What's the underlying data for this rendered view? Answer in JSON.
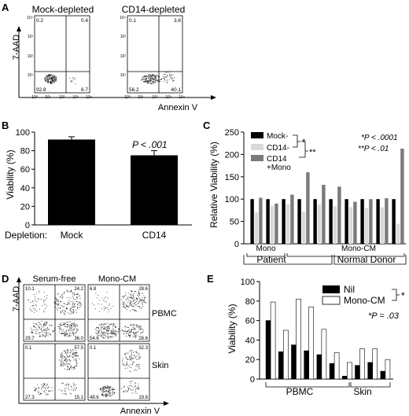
{
  "panel_letters": {
    "a": "A",
    "b": "B",
    "c": "C",
    "d": "D",
    "e": "E"
  },
  "colors": {
    "black": "#000000",
    "light_gray": "#d9d9d9",
    "dark_gray": "#7a7a7a",
    "white": "#ffffff"
  },
  "chart_data": [
    {
      "panel": "A",
      "type": "scatter",
      "ylabel": "7-AAD",
      "xlabel": "Annexin V",
      "tick_labels": [
        "10⁰",
        "10¹",
        "10²",
        "10³",
        "10⁴"
      ],
      "plots": [
        {
          "title": "Mock-depleted",
          "quadrants": {
            "upper_left": "0.2",
            "upper_right": "0.4",
            "lower_left": "92.8",
            "lower_right": "6.7"
          }
        },
        {
          "title": "CD14-depleted",
          "quadrants": {
            "upper_left": "0.1",
            "upper_right": "3.6",
            "lower_left": "56.2",
            "lower_right": "40.1"
          }
        }
      ]
    },
    {
      "panel": "B",
      "type": "bar",
      "ylabel": "Viability (%)",
      "x_caption": "Depletion:",
      "categories": [
        "Mock",
        "CD14"
      ],
      "values": [
        92,
        75
      ],
      "errors": [
        3,
        5
      ],
      "ylim": [
        0,
        100
      ],
      "yticks": [
        0,
        20,
        40,
        60,
        80,
        100
      ],
      "annotation": "P < .001"
    },
    {
      "panel": "C",
      "type": "bar",
      "ylabel": "Relative Viability (%)",
      "ylim": [
        0,
        250
      ],
      "yticks": [
        0,
        50,
        100,
        150,
        200,
        250
      ],
      "legend": [
        "Mock-",
        "CD14-",
        "CD14 +Mono"
      ],
      "legend_lines": [
        "Mock-",
        "CD14-",
        "CD14",
        "+Mono"
      ],
      "sig_marks": [
        "*",
        "**"
      ],
      "annotations": [
        "*P < .0001",
        "**P < .01"
      ],
      "groups": [
        [
          100,
          70,
          103
        ],
        [
          100,
          85,
          90
        ],
        [
          100,
          88,
          110
        ],
        [
          100,
          72,
          160
        ],
        [
          100,
          88,
          132
        ],
        [
          100,
          84,
          128
        ],
        [
          100,
          82,
          94
        ],
        [
          100,
          80,
          100
        ],
        [
          100,
          82,
          102
        ],
        [
          100,
          45,
          213
        ]
      ],
      "group_labels": {
        "mono": "Mono",
        "mono_cm": "Mono-CM",
        "patient": "Patient",
        "normal_donor": "Normal Donor"
      }
    },
    {
      "panel": "D",
      "type": "scatter",
      "ylabel": "7-AAD",
      "xlabel": "Annexin V",
      "column_titles": [
        "Serum-free",
        "Mono-CM"
      ],
      "row_titles": [
        "PBMC",
        "Skin"
      ],
      "plots": [
        {
          "quadrants": {
            "upper_left": "10.1",
            "upper_right": "24.2",
            "lower_left": "29.7",
            "lower_right": "36.0"
          }
        },
        {
          "quadrants": {
            "upper_left": "6.8",
            "upper_right": "28.6",
            "lower_left": "54.6",
            "lower_right": "26.6"
          }
        },
        {
          "quadrants": {
            "upper_left": "0.1",
            "upper_right": "57.5",
            "lower_left": "27.3",
            "lower_right": "15.1"
          }
        },
        {
          "quadrants": {
            "upper_left": "0.1",
            "upper_right": "32.3",
            "lower_left": "48.6",
            "lower_right": "19.8"
          }
        }
      ]
    },
    {
      "panel": "E",
      "type": "bar",
      "ylabel": "Viability (%)",
      "ylim": [
        0,
        100
      ],
      "yticks": [
        0,
        20,
        40,
        60,
        80,
        100
      ],
      "series": [
        {
          "name": "Nil",
          "color": "#000000",
          "values": [
            60,
            28,
            35,
            29,
            25,
            16,
            3,
            14,
            17,
            8
          ]
        },
        {
          "name": "Mono-CM",
          "color": "#ffffff",
          "values": [
            79,
            50,
            82,
            74,
            51,
            27,
            17,
            31,
            31,
            20
          ]
        }
      ],
      "group_labels": [
        "PBMC",
        "Skin"
      ],
      "sig_mark": "*",
      "annotation": "*P = .03"
    }
  ]
}
